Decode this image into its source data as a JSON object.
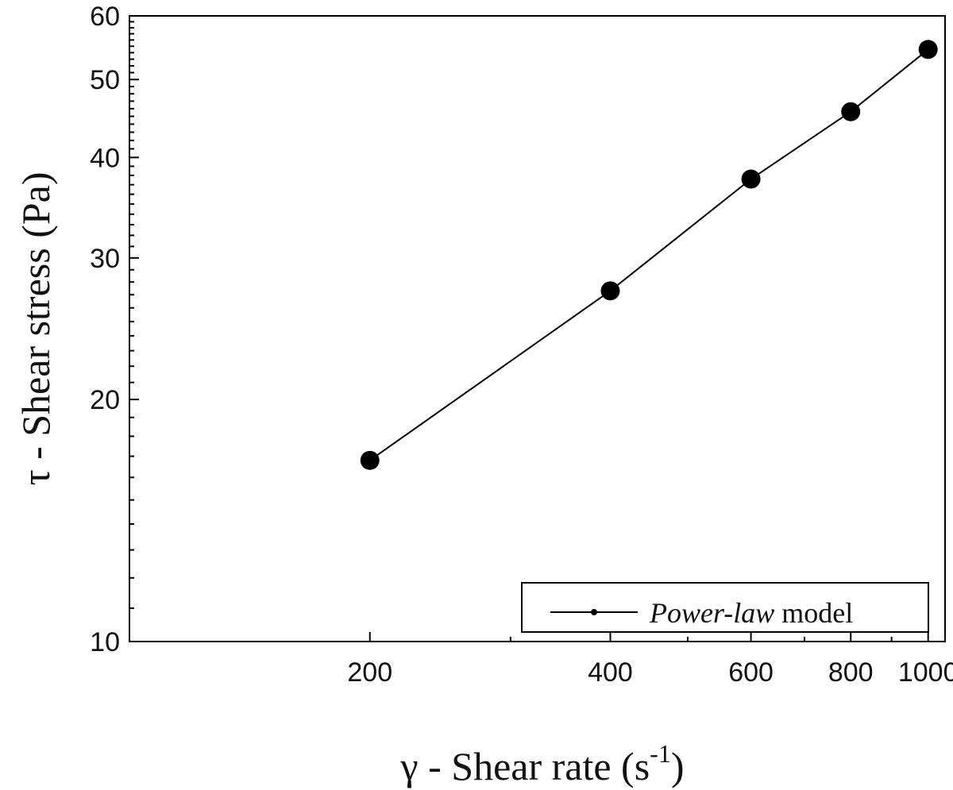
{
  "chart_data": {
    "type": "line",
    "x_scale": "log",
    "y_scale": "log",
    "xlim": [
      100,
      1050
    ],
    "ylim": [
      10,
      60
    ],
    "xticks": [
      200,
      400,
      600,
      800,
      1000
    ],
    "xtick_labels": [
      "200",
      "400",
      "600",
      "800",
      "1000"
    ],
    "yticks": [
      10,
      20,
      30,
      40,
      50,
      60
    ],
    "ytick_labels": [
      "10",
      "20",
      "30",
      "40",
      "50",
      "60"
    ],
    "xlabel": {
      "symbol": "γ",
      "text": " - Shear rate (s",
      "superscript": "-1",
      "close": ")"
    },
    "ylabel": "τ - Shear stress (Pa)",
    "series": [
      {
        "name": "Power-law model",
        "marker": "circle",
        "color": "#000000",
        "x": [
          200,
          400,
          600,
          800,
          1000
        ],
        "y": [
          16.8,
          27.3,
          37.6,
          45.6,
          54.5
        ]
      }
    ],
    "legend": {
      "position": "bottom-right",
      "label_italic": "Power-law",
      "label_plain": " model"
    },
    "grid": false
  }
}
